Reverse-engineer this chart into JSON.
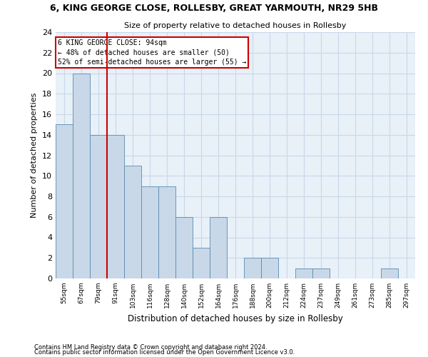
{
  "title": "6, KING GEORGE CLOSE, ROLLESBY, GREAT YARMOUTH, NR29 5HB",
  "subtitle": "Size of property relative to detached houses in Rollesby",
  "xlabel": "Distribution of detached houses by size in Rollesby",
  "ylabel": "Number of detached properties",
  "categories": [
    "55sqm",
    "67sqm",
    "79sqm",
    "91sqm",
    "103sqm",
    "116sqm",
    "128sqm",
    "140sqm",
    "152sqm",
    "164sqm",
    "176sqm",
    "188sqm",
    "200sqm",
    "212sqm",
    "224sqm",
    "237sqm",
    "249sqm",
    "261sqm",
    "273sqm",
    "285sqm",
    "297sqm"
  ],
  "values": [
    15,
    20,
    14,
    14,
    11,
    9,
    9,
    6,
    3,
    6,
    0,
    2,
    2,
    0,
    1,
    1,
    0,
    0,
    0,
    1,
    0
  ],
  "bar_color": "#c8d8e8",
  "bar_edge_color": "#5a8ab0",
  "redline_x": 2.5,
  "annotation_line1": "6 KING GEORGE CLOSE: 94sqm",
  "annotation_line2": "← 48% of detached houses are smaller (50)",
  "annotation_line3": "52% of semi-detached houses are larger (55) →",
  "annotation_box_color": "#ffffff",
  "annotation_box_edge": "#cc0000",
  "ylim": [
    0,
    24
  ],
  "yticks": [
    0,
    2,
    4,
    6,
    8,
    10,
    12,
    14,
    16,
    18,
    20,
    22,
    24
  ],
  "grid_color": "#c8d8e8",
  "background_color": "#e8f0f8",
  "footnote1": "Contains HM Land Registry data © Crown copyright and database right 2024.",
  "footnote2": "Contains public sector information licensed under the Open Government Licence v3.0."
}
